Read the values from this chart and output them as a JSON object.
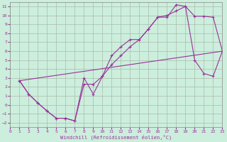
{
  "xlabel": "Windchill (Refroidissement éolien,°C)",
  "bg_color": "#cceedd",
  "grid_color": "#aabbaa",
  "line_color": "#993399",
  "xlim": [
    0,
    23
  ],
  "ylim": [
    -2.5,
    11.5
  ],
  "xticks": [
    0,
    1,
    2,
    3,
    4,
    5,
    6,
    7,
    8,
    9,
    10,
    11,
    12,
    13,
    14,
    15,
    16,
    17,
    18,
    19,
    20,
    21,
    22,
    23
  ],
  "yticks": [
    -2,
    -1,
    0,
    1,
    2,
    3,
    4,
    5,
    6,
    7,
    8,
    9,
    10,
    11
  ],
  "line1_x": [
    1,
    2,
    3,
    4,
    5,
    6,
    7,
    8,
    9,
    10,
    11,
    12,
    13,
    14,
    15,
    16,
    17,
    18,
    19,
    20,
    21,
    22,
    23
  ],
  "line1_y": [
    2.7,
    1.2,
    0.2,
    -0.7,
    -1.5,
    -1.5,
    -1.8,
    3.0,
    1.2,
    3.2,
    5.5,
    6.5,
    7.3,
    7.3,
    8.5,
    9.8,
    9.8,
    11.2,
    11.0,
    9.9,
    9.9,
    9.8,
    6.0
  ],
  "line2_x": [
    1,
    2,
    3,
    4,
    5,
    6,
    7,
    8,
    9,
    10,
    11,
    12,
    13,
    14,
    15,
    16,
    17,
    18,
    19,
    20,
    21,
    22,
    23
  ],
  "line2_y": [
    2.7,
    1.2,
    0.2,
    -0.7,
    -1.5,
    -1.5,
    -1.8,
    2.3,
    2.3,
    3.2,
    4.5,
    5.5,
    6.5,
    7.3,
    8.5,
    9.8,
    10.0,
    10.5,
    11.0,
    5.0,
    3.5,
    3.2,
    6.0
  ],
  "line3_x": [
    1,
    23
  ],
  "line3_y": [
    2.7,
    6.0
  ]
}
